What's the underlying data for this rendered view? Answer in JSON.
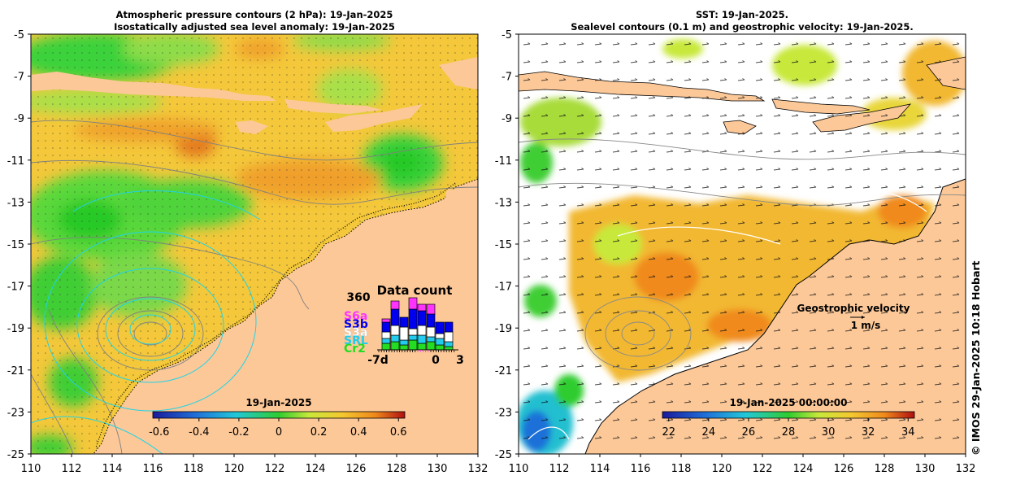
{
  "left_panel": {
    "title_line1": "Atmospheric pressure contours (2 hPa): 19-Jan-2025",
    "title_line2": "Isostatically adjusted sea level anomaly: 19-Jan-2025",
    "colorbar_title": "19-Jan-2025",
    "colorbar_ticks": [
      "-0.6",
      "-0.4",
      "-0.2",
      "0",
      "0.2",
      "0.4",
      "0.6"
    ],
    "data_count": {
      "title": "Data count",
      "ymax_label": "360",
      "x_labels": [
        "-7d",
        "0",
        "3"
      ],
      "missions": [
        {
          "name": "S6a",
          "color": "#ff33ff"
        },
        {
          "name": "S3b",
          "color": "#0000ee"
        },
        {
          "name": "S3a",
          "color": "#ffffff"
        },
        {
          "name": "SRL",
          "color": "#22ccee"
        },
        {
          "name": "Cr2",
          "color": "#22dd22"
        }
      ],
      "bars": [
        {
          "Cr2": 40,
          "SRL": 30,
          "S3a": 40,
          "S3b": 60,
          "S6a": 20
        },
        {
          "Cr2": 50,
          "SRL": 40,
          "S3a": 60,
          "S3b": 100,
          "S6a": 50
        },
        {
          "Cr2": 30,
          "SRL": 30,
          "S3a": 80,
          "S3b": 60,
          "S6a": 0
        },
        {
          "Cr2": 60,
          "SRL": 30,
          "S3a": 40,
          "S3b": 120,
          "S6a": 70
        },
        {
          "Cr2": 40,
          "SRL": 50,
          "S3a": 60,
          "S3b": 90,
          "S6a": 40
        },
        {
          "Cr2": 50,
          "SRL": 30,
          "S3a": 60,
          "S3b": 80,
          "S6a": 60
        },
        {
          "Cr2": 30,
          "SRL": 40,
          "S3a": 30,
          "S3b": 70,
          "S6a": 0
        },
        {
          "Cr2": 20,
          "SRL": 30,
          "S3a": 60,
          "S3b": 60,
          "S6a": 0
        }
      ]
    }
  },
  "right_panel": {
    "title_line1": "SST: 19-Jan-2025.",
    "title_line2": "Sealevel contours (0.1 m) and geostrophic velocity: 19-Jan-2025.",
    "colorbar_title": "19-Jan-2025 00:00:00",
    "colorbar_ticks": [
      "22",
      "24",
      "26",
      "28",
      "30",
      "32",
      "34"
    ],
    "velocity_label": "Geostrophic velocity",
    "velocity_scale": "1 m/s"
  },
  "axes": {
    "lat_ticks": [
      "-5",
      "-7",
      "-9",
      "-11",
      "-13",
      "-15",
      "-17",
      "-19",
      "-21",
      "-23",
      "-25"
    ],
    "lon_ticks": [
      "110",
      "112",
      "114",
      "116",
      "118",
      "120",
      "122",
      "124",
      "126",
      "128",
      "130",
      "132"
    ]
  },
  "credit": "© IMOS 29-Jan-2025 10:18 Hobart",
  "colors": {
    "land": "#fcc898",
    "ocean_sla": "#f4c83a",
    "sst_warm": "#f2b830"
  }
}
